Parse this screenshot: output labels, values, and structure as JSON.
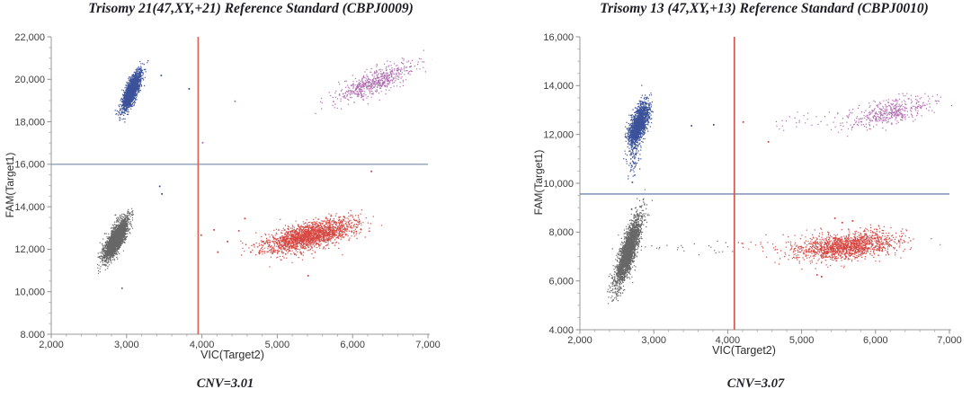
{
  "page": {
    "background": "#ffffff"
  },
  "chart_data": [
    {
      "type": "scatter",
      "title": "Trisomy 21(47,XY,+21) Reference Standard (CBPJ0009)",
      "caption": "CNV=3.01",
      "xlabel": "VIC(Target2)",
      "ylabel": "FAM(Target1)",
      "xlim": [
        2000,
        7000
      ],
      "ylim": [
        8000,
        22000
      ],
      "x_ticks": [
        {
          "v": 2000,
          "label": "2,000"
        },
        {
          "v": 3000,
          "label": "3,000"
        },
        {
          "v": 4000,
          "label": "4,000"
        },
        {
          "v": 5000,
          "label": "5,000"
        },
        {
          "v": 6000,
          "label": "6,000"
        },
        {
          "v": 7000,
          "label": "7,000"
        }
      ],
      "y_ticks": [
        {
          "v": 22000,
          "label": "22,000"
        },
        {
          "v": 20000,
          "label": "20,000"
        },
        {
          "v": 18000,
          "label": "18,000"
        },
        {
          "v": 16000,
          "label": "16,000"
        },
        {
          "v": 14000,
          "label": "14,000"
        },
        {
          "v": 12000,
          "label": "12,000"
        },
        {
          "v": 10000,
          "label": "10,000"
        },
        {
          "v": 8000,
          "label": "8.000"
        }
      ],
      "x_minor_step": 200,
      "y_minor_step": 500,
      "threshold_x": {
        "value": 3950,
        "color": "#e0635a"
      },
      "threshold_y": {
        "value": 16000,
        "color": "#8496b4"
      },
      "legend": "off",
      "grid": "off",
      "clusters": [
        {
          "name": "fam-positive",
          "color": "#263f8f",
          "n": 2000,
          "cx": 3060,
          "cy": 19480,
          "sx": 62,
          "sy": 450,
          "rho": 0.78
        },
        {
          "name": "double-negative",
          "color": "#565656",
          "n": 2600,
          "cx": 2850,
          "cy": 12480,
          "sx": 80,
          "sy": 480,
          "rho": 0.78
        },
        {
          "name": "vic-positive",
          "color": "#d2332c",
          "n": 2000,
          "cx": 5430,
          "cy": 12650,
          "sx": 300,
          "sy": 380,
          "rho": 0.62
        },
        {
          "name": "double-positive",
          "color": "#a95ca9",
          "n": 600,
          "cx": 6280,
          "cy": 19850,
          "sx": 260,
          "sy": 450,
          "rho": 0.78
        }
      ],
      "strays": [
        {
          "x": 3450,
          "y": 20220,
          "c": "#263f8f"
        },
        {
          "x": 3820,
          "y": 19590,
          "c": "#263f8f"
        },
        {
          "x": 3430,
          "y": 15000,
          "c": "#263f8f"
        },
        {
          "x": 3460,
          "y": 14640,
          "c": "#263f8f"
        },
        {
          "x": 4430,
          "y": 19000,
          "c": "#a95ca9"
        },
        {
          "x": 4000,
          "y": 17050,
          "c": "#a95ca9"
        },
        {
          "x": 2930,
          "y": 10200,
          "c": "#565656"
        },
        {
          "x": 3980,
          "y": 12700,
          "c": "#d2332c"
        },
        {
          "x": 4150,
          "y": 12950,
          "c": "#d2332c"
        },
        {
          "x": 4330,
          "y": 12400,
          "c": "#d2332c"
        },
        {
          "x": 4480,
          "y": 12900,
          "c": "#d2332c"
        },
        {
          "x": 4680,
          "y": 12250,
          "c": "#d2332c"
        },
        {
          "x": 4560,
          "y": 13480,
          "c": "#d2332c"
        },
        {
          "x": 4200,
          "y": 11900,
          "c": "#d2332c"
        },
        {
          "x": 5400,
          "y": 10790,
          "c": "#d2332c"
        },
        {
          "x": 6240,
          "y": 15700,
          "c": "#d2332c"
        }
      ]
    },
    {
      "type": "scatter",
      "title": "Trisomy 13 (47,XY,+13) Reference Standard (CBPJ0010)",
      "caption": "CNV=3.07",
      "xlabel": "VIC(Target2)",
      "ylabel": "FAM(Target1)",
      "xlim": [
        2000,
        7000
      ],
      "ylim": [
        4000,
        16000
      ],
      "x_ticks": [
        {
          "v": 2000,
          "label": "2,000"
        },
        {
          "v": 3000,
          "label": "3,000"
        },
        {
          "v": 4000,
          "label": "4,000"
        },
        {
          "v": 5000,
          "label": "5,000"
        },
        {
          "v": 6000,
          "label": "6,000"
        },
        {
          "v": 7000,
          "label": "7,000"
        }
      ],
      "y_ticks": [
        {
          "v": 16000,
          "label": "16,000"
        },
        {
          "v": 14000,
          "label": "14,000"
        },
        {
          "v": 12000,
          "label": "12,000"
        },
        {
          "v": 10000,
          "label": "10,000"
        },
        {
          "v": 8000,
          "label": "8,000"
        },
        {
          "v": 6000,
          "label": "6,000"
        },
        {
          "v": 4000,
          "label": "4.000"
        }
      ],
      "x_minor_step": 200,
      "y_minor_step": 500,
      "threshold_x": {
        "value": 4090,
        "color": "#d4574e"
      },
      "threshold_y": {
        "value": 9560,
        "color": "#7186b4"
      },
      "legend": "off",
      "grid": "off",
      "clusters": [
        {
          "name": "fam-positive",
          "color": "#263f8f",
          "n": 1700,
          "cx": 2790,
          "cy": 12450,
          "sx": 68,
          "sy": 430,
          "rho": 0.6
        },
        {
          "name": "fam-positive-tail",
          "color": "#263f8f",
          "n": 70,
          "cx": 2730,
          "cy": 11000,
          "sx": 45,
          "sy": 400,
          "rho": 0.5
        },
        {
          "name": "double-negative",
          "color": "#565656",
          "n": 2400,
          "cx": 2650,
          "cy": 7250,
          "sx": 88,
          "sy": 720,
          "rho": 0.82
        },
        {
          "name": "vic-positive",
          "color": "#d2332c",
          "n": 1500,
          "cx": 5600,
          "cy": 7450,
          "sx": 330,
          "sy": 270,
          "rho": 0.35
        },
        {
          "name": "double-positive",
          "color": "#a95ca9",
          "n": 430,
          "cx": 6220,
          "cy": 12950,
          "sx": 280,
          "sy": 330,
          "rho": 0.6
        },
        {
          "name": "double-positive-rain",
          "color": "#a95ca9",
          "n": 35,
          "strip": true,
          "x0": 4550,
          "x1": 5900,
          "cy": 12550,
          "sy": 220
        },
        {
          "name": "negative-rain",
          "color": "#565656",
          "n": 22,
          "strip": true,
          "x0": 2950,
          "x1": 4080,
          "cy": 7380,
          "sy": 170
        },
        {
          "name": "vic-positive-rain",
          "color": "#d2332c",
          "n": 26,
          "strip": true,
          "x0": 4100,
          "x1": 5060,
          "cy": 7480,
          "sy": 160
        }
      ],
      "strays": [
        {
          "x": 3500,
          "y": 12390,
          "c": "#263f8f"
        },
        {
          "x": 3800,
          "y": 12430,
          "c": "#263f8f"
        },
        {
          "x": 2700,
          "y": 10070,
          "c": "#263f8f"
        },
        {
          "x": 2690,
          "y": 8970,
          "c": "#565656"
        },
        {
          "x": 4200,
          "y": 12540,
          "c": "#d2332c"
        },
        {
          "x": 4540,
          "y": 11730,
          "c": "#d2332c"
        },
        {
          "x": 5440,
          "y": 8600,
          "c": "#d2332c"
        },
        {
          "x": 5540,
          "y": 8420,
          "c": "#d2332c"
        },
        {
          "x": 5680,
          "y": 8490,
          "c": "#d2332c"
        },
        {
          "x": 5200,
          "y": 6280,
          "c": "#d2332c"
        },
        {
          "x": 5260,
          "y": 6210,
          "c": "#d2332c"
        }
      ]
    }
  ]
}
